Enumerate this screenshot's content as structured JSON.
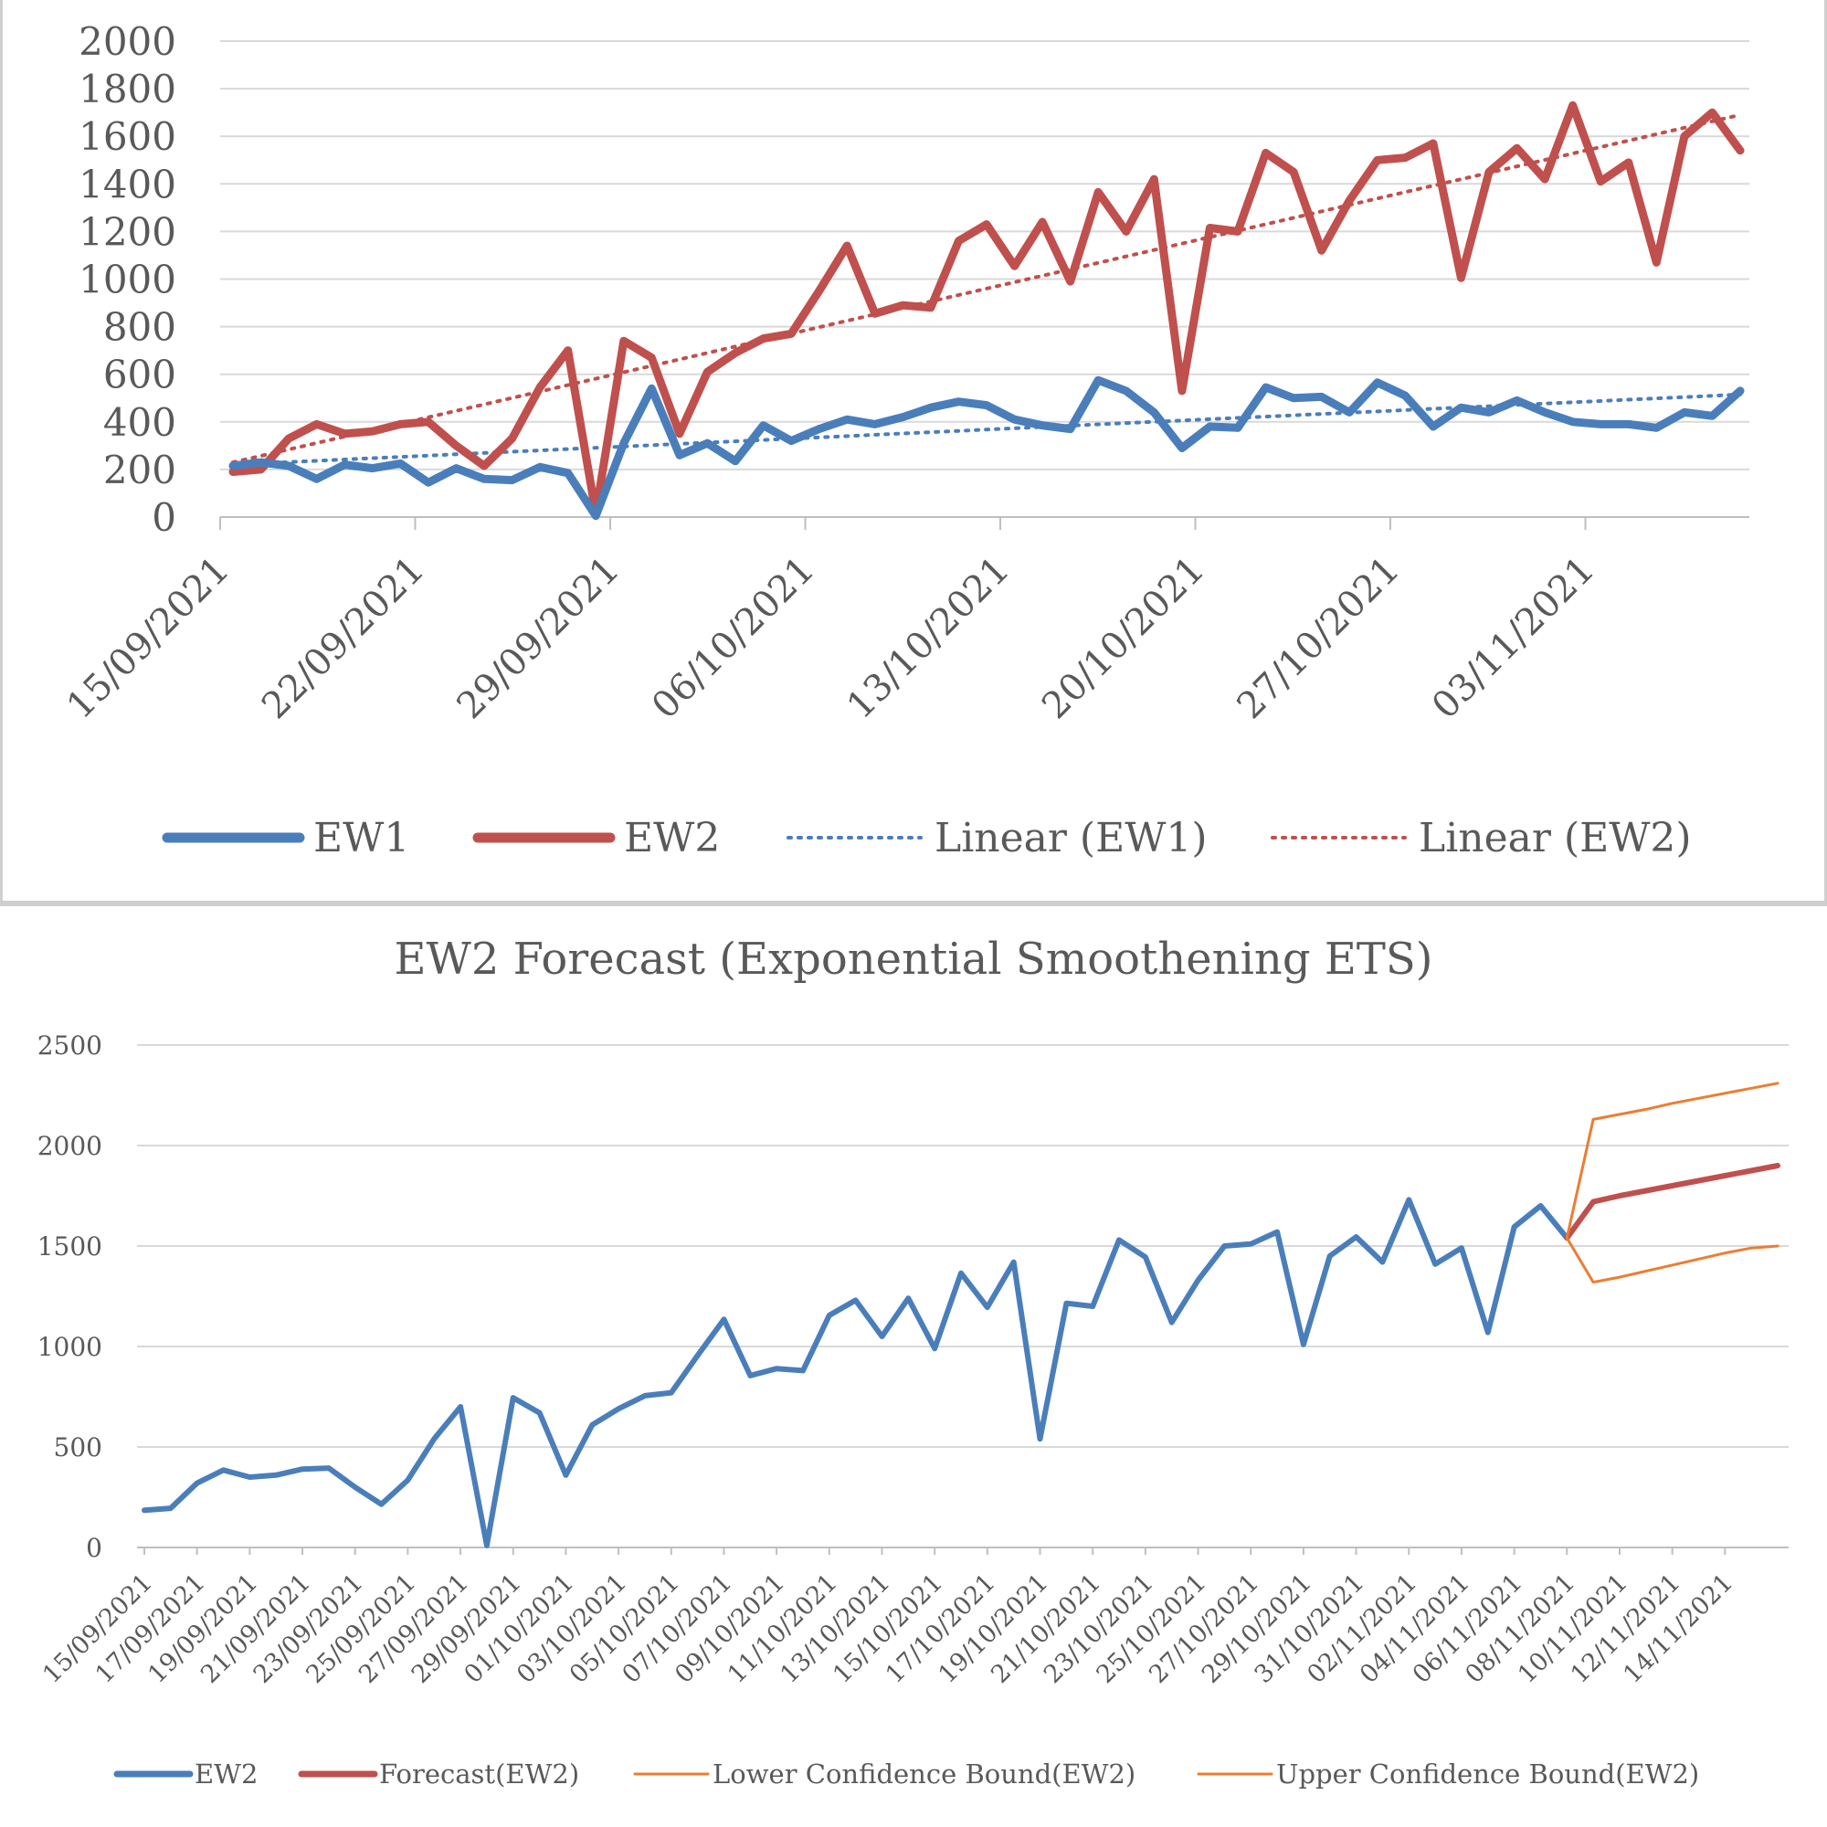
{
  "chart_data": [
    {
      "type": "line",
      "title": "",
      "xlabel": "",
      "ylabel": "",
      "ylim": [
        0,
        2000
      ],
      "yticks": [
        0,
        200,
        400,
        600,
        800,
        1000,
        1200,
        1400,
        1600,
        1800,
        2000
      ],
      "x_start": "15/09/2021",
      "x_end": "08/11/2021",
      "xtick_labels": [
        "15/09/2021",
        "22/09/2021",
        "29/09/2021",
        "06/10/2021",
        "13/10/2021",
        "20/10/2021",
        "27/10/2021",
        "03/11/2021"
      ],
      "grid": true,
      "legend_position": "bottom",
      "colors": {
        "EW1": "#4a7ebb",
        "EW2": "#c0504d"
      },
      "series": [
        {
          "name": "EW1",
          "style": "solid",
          "values": [
            215,
            230,
            215,
            160,
            220,
            205,
            225,
            145,
            205,
            160,
            155,
            210,
            185,
            5,
            310,
            540,
            260,
            310,
            235,
            385,
            320,
            370,
            410,
            390,
            420,
            460,
            485,
            470,
            410,
            385,
            370,
            575,
            530,
            440,
            290,
            380,
            375,
            545,
            500,
            505,
            440,
            565,
            510,
            380,
            460,
            440,
            490,
            440,
            400,
            390,
            390,
            375,
            440,
            425,
            530
          ]
        },
        {
          "name": "EW2",
          "style": "solid",
          "values": [
            190,
            200,
            330,
            390,
            350,
            360,
            390,
            400,
            300,
            215,
            330,
            545,
            700,
            15,
            740,
            670,
            350,
            610,
            690,
            750,
            770,
            950,
            1140,
            855,
            890,
            880,
            1160,
            1230,
            1055,
            1240,
            990,
            1365,
            1200,
            1420,
            530,
            1215,
            1200,
            1530,
            1450,
            1120,
            1330,
            1500,
            1510,
            1570,
            1005,
            1450,
            1550,
            1420,
            1730,
            1410,
            1490,
            1070,
            1600,
            1700,
            1540
          ]
        },
        {
          "name": "Linear (EW1)",
          "style": "dotted",
          "trend": [
            220,
            515
          ]
        },
        {
          "name": "Linear (EW2)",
          "style": "dotted",
          "trend": [
            230,
            1690
          ]
        }
      ]
    },
    {
      "type": "line",
      "title": "EW2 Forecast (Exponential Smoothening ETS)",
      "xlabel": "",
      "ylabel": "",
      "ylim": [
        0,
        2500
      ],
      "yticks": [
        0,
        500,
        1000,
        1500,
        2000,
        2500
      ],
      "x_start": "15/09/2021",
      "x_end": "15/11/2021",
      "xtick_labels": [
        "15/09/2021",
        "17/09/2021",
        "19/09/2021",
        "21/09/2021",
        "23/09/2021",
        "25/09/2021",
        "27/09/2021",
        "29/09/2021",
        "01/10/2021",
        "03/10/2021",
        "05/10/2021",
        "07/10/2021",
        "09/10/2021",
        "11/10/2021",
        "13/10/2021",
        "15/10/2021",
        "17/10/2021",
        "19/10/2021",
        "21/10/2021",
        "23/10/2021",
        "25/10/2021",
        "27/10/2021",
        "29/10/2021",
        "31/10/2021",
        "02/11/2021",
        "04/11/2021",
        "06/11/2021",
        "08/11/2021",
        "10/11/2021",
        "12/11/2021",
        "14/11/2021"
      ],
      "grid": true,
      "legend_position": "bottom",
      "colors": {
        "EW2": "#4a7ebb",
        "Forecast(EW2)": "#c0504d",
        "Lower Confidence Bound(EW2)": "#ed7d31",
        "Upper Confidence Bound(EW2)": "#ed7d31"
      },
      "series": [
        {
          "name": "EW2",
          "start_index": 0,
          "values": [
            185,
            195,
            320,
            385,
            350,
            360,
            390,
            395,
            300,
            215,
            335,
            540,
            700,
            10,
            745,
            670,
            360,
            610,
            690,
            755,
            770,
            955,
            1135,
            855,
            890,
            880,
            1155,
            1230,
            1050,
            1240,
            990,
            1365,
            1195,
            1420,
            540,
            1215,
            1200,
            1530,
            1445,
            1120,
            1330,
            1500,
            1510,
            1570,
            1010,
            1450,
            1545,
            1420,
            1730,
            1410,
            1490,
            1070,
            1595,
            1700,
            1540
          ]
        },
        {
          "name": "Forecast(EW2)",
          "start_index": 54,
          "values": [
            1540,
            1720,
            1750,
            1775,
            1800,
            1825,
            1850,
            1875,
            1900
          ]
        },
        {
          "name": "Lower Confidence Bound(EW2)",
          "start_index": 54,
          "values": [
            1540,
            1320,
            1345,
            1375,
            1405,
            1435,
            1465,
            1490,
            1500
          ]
        },
        {
          "name": "Upper Confidence Bound(EW2)",
          "start_index": 54,
          "values": [
            1540,
            2130,
            2155,
            2180,
            2210,
            2235,
            2260,
            2285,
            2310
          ]
        }
      ]
    }
  ]
}
